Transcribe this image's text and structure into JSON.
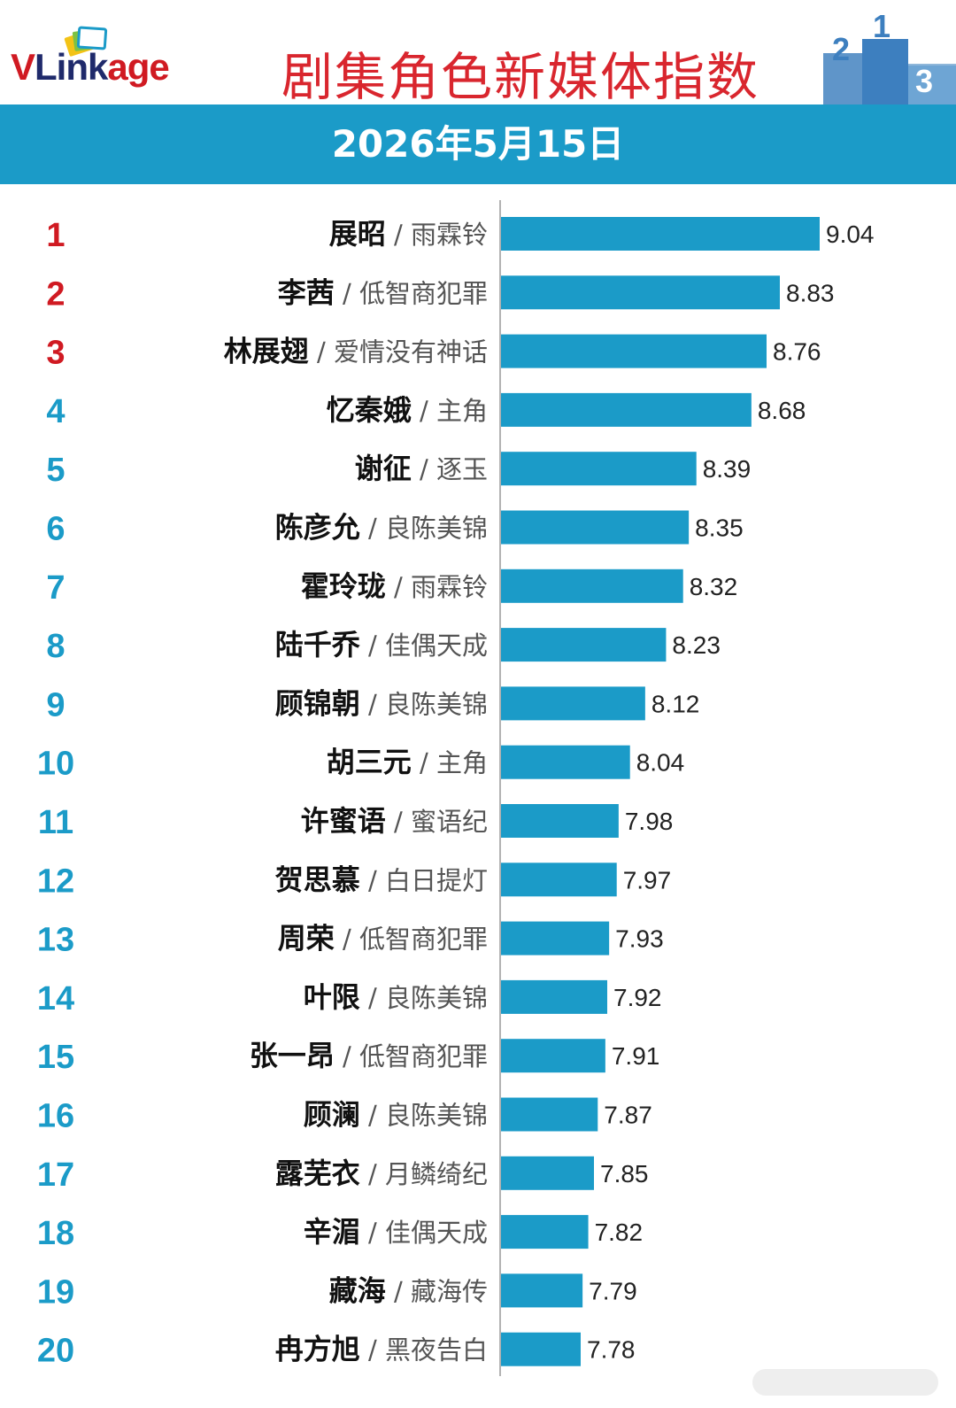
{
  "header": {
    "logo_v": "V",
    "logo_link": "Link",
    "logo_age": "age",
    "title": "剧集角色新媒体指数",
    "date": "2026年5月15日"
  },
  "colors": {
    "bar": "#1b9bc8",
    "rank_top3": "#d01a22",
    "rank_other": "#1b9bc8",
    "title": "#d9262e"
  },
  "chart_data": {
    "type": "bar",
    "orientation": "horizontal",
    "rows": [
      {
        "rank": "1",
        "name": "展昭",
        "drama": "雨霖铃",
        "value": 9.04
      },
      {
        "rank": "2",
        "name": "李茜",
        "drama": "低智商犯罪",
        "value": 8.83
      },
      {
        "rank": "3",
        "name": "林展翅",
        "drama": "爱情没有神话",
        "value": 8.76
      },
      {
        "rank": "4",
        "name": "忆秦娥",
        "drama": "主角",
        "value": 8.68
      },
      {
        "rank": "5",
        "name": "谢征",
        "drama": "逐玉",
        "value": 8.39
      },
      {
        "rank": "6",
        "name": "陈彦允",
        "drama": "良陈美锦",
        "value": 8.35
      },
      {
        "rank": "7",
        "name": "霍玲珑",
        "drama": "雨霖铃",
        "value": 8.32
      },
      {
        "rank": "8",
        "name": "陆千乔",
        "drama": "佳偶天成",
        "value": 8.23
      },
      {
        "rank": "9",
        "name": "顾锦朝",
        "drama": "良陈美锦",
        "value": 8.12
      },
      {
        "rank": "10",
        "name": "胡三元",
        "drama": "主角",
        "value": 8.04
      },
      {
        "rank": "11",
        "name": "许蜜语",
        "drama": "蜜语纪",
        "value": 7.98
      },
      {
        "rank": "12",
        "name": "贺思慕",
        "drama": "白日提灯",
        "value": 7.97
      },
      {
        "rank": "13",
        "name": "周荣",
        "drama": "低智商犯罪",
        "value": 7.93
      },
      {
        "rank": "14",
        "name": "叶限",
        "drama": "良陈美锦",
        "value": 7.92
      },
      {
        "rank": "15",
        "name": "张一昂",
        "drama": "低智商犯罪",
        "value": 7.91
      },
      {
        "rank": "16",
        "name": "顾澜",
        "drama": "良陈美锦",
        "value": 7.87
      },
      {
        "rank": "17",
        "name": "露芜衣",
        "drama": "月鳞绮纪",
        "value": 7.85
      },
      {
        "rank": "18",
        "name": "辛湄",
        "drama": "佳偶天成",
        "value": 7.82
      },
      {
        "rank": "19",
        "name": "藏海",
        "drama": "藏海传",
        "value": 7.79
      },
      {
        "rank": "20",
        "name": "冉方旭",
        "drama": "黑夜告白",
        "value": 7.78
      }
    ]
  }
}
